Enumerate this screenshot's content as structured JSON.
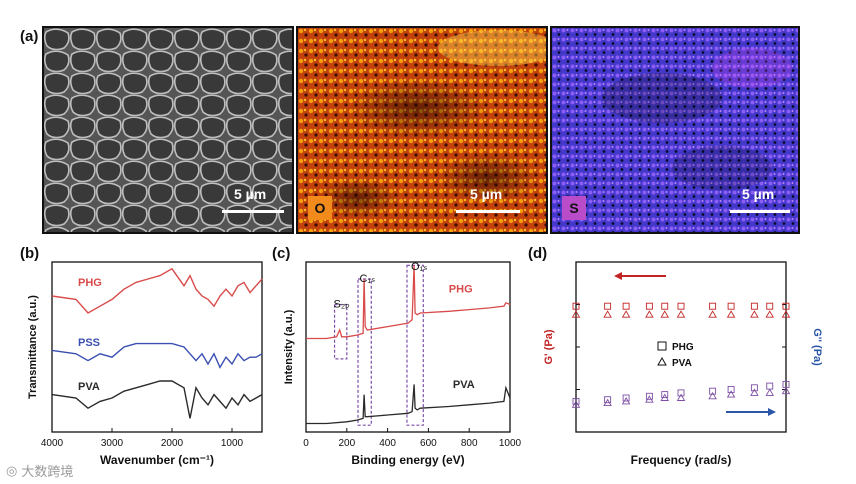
{
  "panel_a": {
    "label": "(a)",
    "images": [
      {
        "scale": "5 µm",
        "element": ""
      },
      {
        "scale": "5 µm",
        "element": "O"
      },
      {
        "scale": "5 µm",
        "element": "S"
      }
    ]
  },
  "colors": {
    "red": "#d94a4a",
    "blue": "#3a4fb0",
    "black": "#2a2a2a",
    "purple": "#7d4fa6",
    "gp_red": "#c22424",
    "gpp_blue": "#2b56a8"
  },
  "chart_data": [
    {
      "type": "line",
      "panel": "(b)",
      "xlabel": "Wavenumber (cm⁻¹)",
      "ylabel": "Transmittance (a.u.)",
      "xticks": [
        "4000",
        "3000",
        "2000",
        "1000"
      ],
      "xlim": [
        4000,
        500
      ],
      "series": [
        {
          "name": "PHG",
          "x": [
            4000,
            3600,
            3400,
            3200,
            3000,
            2800,
            2600,
            2400,
            2200,
            2000,
            1800,
            1700,
            1600,
            1500,
            1400,
            1300,
            1200,
            1100,
            1000,
            900,
            800,
            700,
            600,
            500
          ],
          "values": [
            0.8,
            0.78,
            0.7,
            0.74,
            0.78,
            0.84,
            0.88,
            0.9,
            0.92,
            0.96,
            0.86,
            0.92,
            0.84,
            0.8,
            0.78,
            0.74,
            0.8,
            0.84,
            0.8,
            0.86,
            0.88,
            0.82,
            0.86,
            0.9
          ]
        },
        {
          "name": "PSS",
          "x": [
            4000,
            3600,
            3400,
            3200,
            3000,
            2800,
            2600,
            2400,
            2200,
            2000,
            1800,
            1700,
            1600,
            1500,
            1400,
            1300,
            1200,
            1100,
            1000,
            900,
            800,
            700,
            600,
            500
          ],
          "values": [
            0.48,
            0.46,
            0.42,
            0.46,
            0.44,
            0.5,
            0.52,
            0.52,
            0.52,
            0.52,
            0.5,
            0.46,
            0.42,
            0.46,
            0.4,
            0.46,
            0.38,
            0.44,
            0.4,
            0.46,
            0.42,
            0.44,
            0.44,
            0.46
          ]
        },
        {
          "name": "PVA",
          "x": [
            4000,
            3600,
            3400,
            3200,
            3000,
            2800,
            2600,
            2400,
            2200,
            2000,
            1800,
            1700,
            1600,
            1500,
            1400,
            1300,
            1200,
            1100,
            1000,
            900,
            800,
            700,
            600,
            500
          ],
          "values": [
            0.22,
            0.2,
            0.14,
            0.18,
            0.2,
            0.24,
            0.26,
            0.28,
            0.3,
            0.3,
            0.26,
            0.08,
            0.26,
            0.2,
            0.16,
            0.22,
            0.18,
            0.14,
            0.2,
            0.16,
            0.22,
            0.18,
            0.2,
            0.22
          ]
        }
      ]
    },
    {
      "type": "line",
      "panel": "(c)",
      "xlabel": "Binding energy (eV)",
      "ylabel": "Intensity (a.u.)",
      "xticks": [
        "0",
        "200",
        "400",
        "600",
        "800",
        "1000"
      ],
      "xlim": [
        0,
        1000
      ],
      "annotations": [
        "S₂ₚ",
        "C₁ₛ",
        "O₁ₛ"
      ],
      "series": [
        {
          "name": "PHG",
          "x": [
            0,
            100,
            150,
            165,
            175,
            200,
            250,
            280,
            285,
            290,
            300,
            400,
            500,
            520,
            530,
            535,
            545,
            560,
            700,
            800,
            900,
            970,
            980,
            1000
          ],
          "values": [
            0.55,
            0.55,
            0.56,
            0.6,
            0.56,
            0.56,
            0.57,
            0.58,
            0.9,
            0.62,
            0.6,
            0.62,
            0.64,
            0.66,
            0.98,
            0.7,
            0.69,
            0.7,
            0.71,
            0.72,
            0.73,
            0.74,
            0.76,
            0.75
          ]
        },
        {
          "name": "PVA",
          "x": [
            0,
            100,
            200,
            250,
            280,
            285,
            290,
            300,
            400,
            500,
            520,
            530,
            535,
            545,
            560,
            700,
            800,
            900,
            970,
            980,
            1000
          ],
          "values": [
            0.05,
            0.05,
            0.06,
            0.07,
            0.08,
            0.22,
            0.09,
            0.09,
            0.1,
            0.11,
            0.12,
            0.28,
            0.14,
            0.13,
            0.14,
            0.15,
            0.16,
            0.17,
            0.18,
            0.26,
            0.2
          ]
        }
      ]
    },
    {
      "type": "scatter",
      "panel": "(d)",
      "xlabel": "Frequency (rad/s)",
      "ylabel": "G' (Pa)",
      "y2label": "G'' (Pa)",
      "legend": [
        "PHG",
        "PVA"
      ],
      "markers": [
        "square",
        "triangle"
      ],
      "series": [
        {
          "name": "G' PHG",
          "axis": "left",
          "x": [
            1,
            2,
            3,
            5,
            7,
            10,
            20,
            30,
            50,
            70,
            100
          ],
          "values": [
            0.74,
            0.74,
            0.74,
            0.74,
            0.74,
            0.74,
            0.74,
            0.74,
            0.74,
            0.74,
            0.74
          ]
        },
        {
          "name": "G' PVA",
          "axis": "left",
          "x": [
            1,
            2,
            3,
            5,
            7,
            10,
            20,
            30,
            50,
            70,
            100
          ],
          "values": [
            0.69,
            0.69,
            0.69,
            0.69,
            0.69,
            0.69,
            0.69,
            0.69,
            0.69,
            0.69,
            0.69
          ]
        },
        {
          "name": "G'' PHG",
          "axis": "right",
          "x": [
            1,
            2,
            3,
            5,
            7,
            10,
            20,
            30,
            50,
            70,
            100
          ],
          "values": [
            0.18,
            0.19,
            0.2,
            0.21,
            0.22,
            0.23,
            0.24,
            0.25,
            0.26,
            0.27,
            0.28
          ]
        },
        {
          "name": "G'' PVA",
          "axis": "right",
          "x": [
            1,
            2,
            3,
            5,
            7,
            10,
            20,
            30,
            50,
            70,
            100
          ],
          "values": [
            0.16,
            0.17,
            0.18,
            0.19,
            0.2,
            0.2,
            0.21,
            0.22,
            0.23,
            0.23,
            0.24
          ]
        }
      ]
    }
  ],
  "watermark": "大数跨境"
}
